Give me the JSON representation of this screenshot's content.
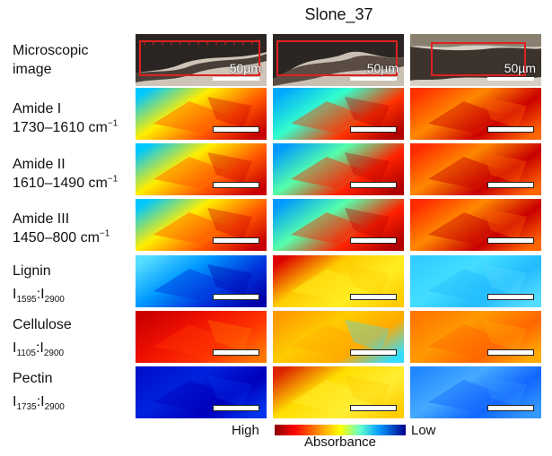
{
  "title": "Slone_37",
  "rows": {
    "microscopic": {
      "line1": "Microscopic",
      "line2": "image"
    },
    "amide1": {
      "name": "Amide I",
      "range": "1730–1610 cm",
      "exp": "−1"
    },
    "amide2": {
      "name": "Amide II",
      "range": "1610–1490 cm",
      "exp": "−1"
    },
    "amide3": {
      "name": "Amide III",
      "range": "1450–800 cm",
      "exp": "−1"
    },
    "lignin": {
      "name": "Lignin",
      "i": "I",
      "num": "1595",
      "sep": ":",
      "i2": "I",
      "den": "2900"
    },
    "cellulose": {
      "name": "Cellulose",
      "i": "I",
      "num": "1105",
      "sep": ":",
      "i2": "I",
      "den": "2900"
    },
    "pectin": {
      "name": "Pectin",
      "i": "I",
      "num": "1735",
      "sep": ":",
      "i2": "I",
      "den": "2900"
    }
  },
  "scale_bar_label": "50µm",
  "legend": {
    "high": "High",
    "title": "Absorbance",
    "low": "Low"
  },
  "colors": {
    "high": "#8b0000",
    "mid": "#ffff00",
    "low": "#00008b",
    "roi": "#e02020"
  }
}
